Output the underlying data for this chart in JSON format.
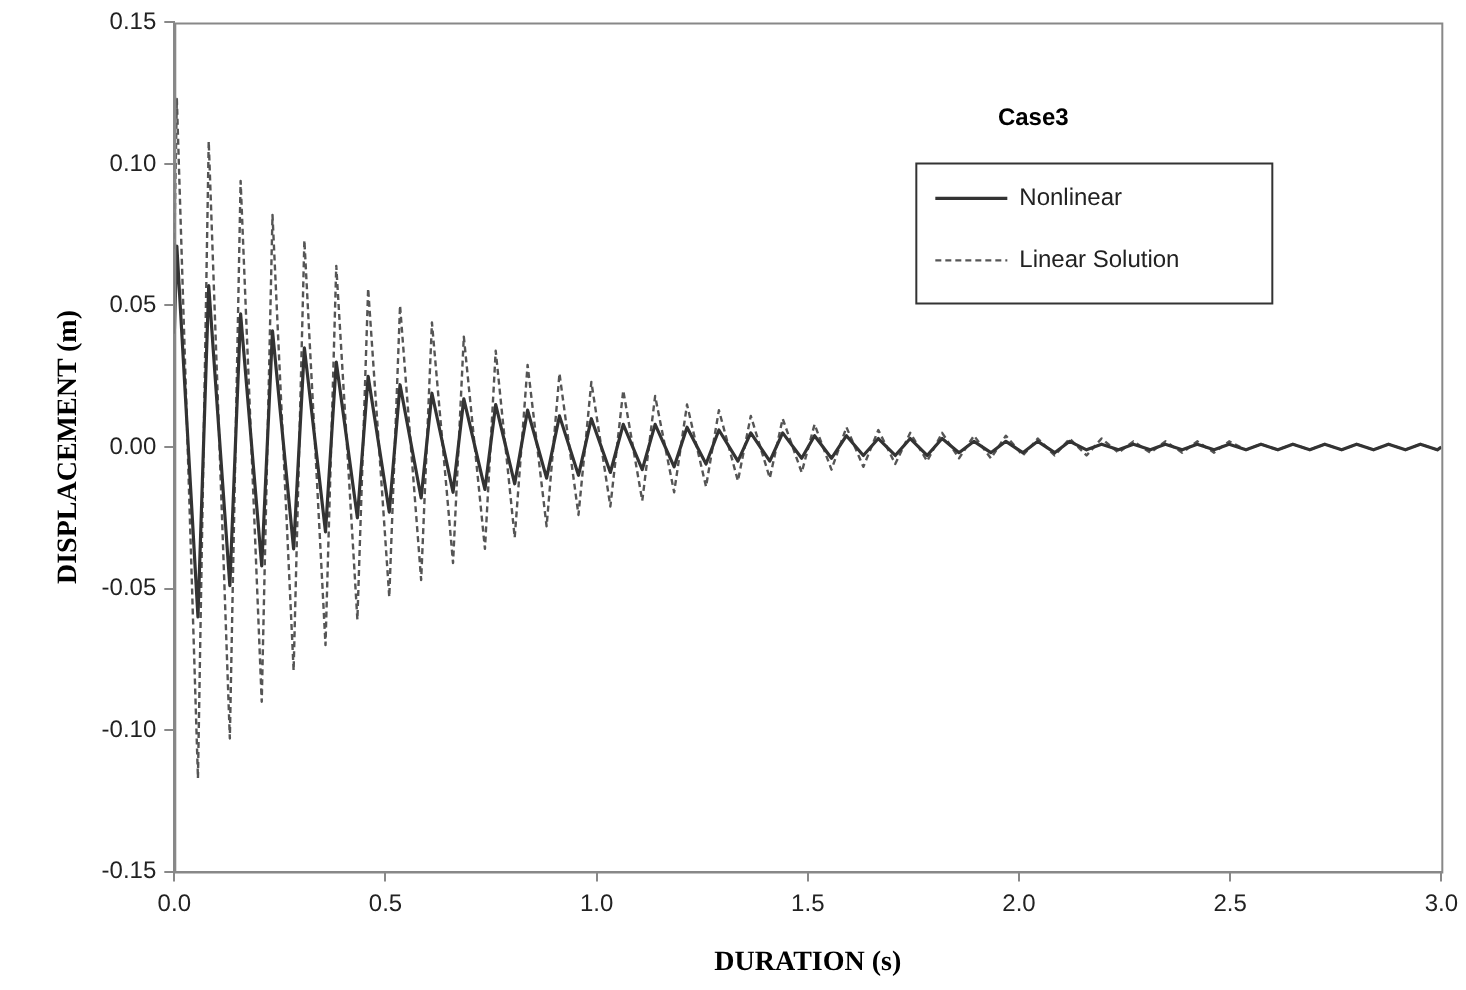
{
  "chart_data": {
    "type": "line",
    "xlabel": "DURATION (s)",
    "ylabel": "DISPLACEMENT (m)",
    "legend_title": "Case3",
    "legend": "top right",
    "grid": false,
    "marker": "none",
    "xlim": [
      0,
      3
    ],
    "xticks": [
      {
        "value": 0,
        "label": "0.0"
      },
      {
        "value": 0.5,
        "label": "0.5"
      },
      {
        "value": 1,
        "label": "1.0"
      },
      {
        "value": 1.5,
        "label": "1.5"
      },
      {
        "value": 2,
        "label": "2.0"
      },
      {
        "value": 2.5,
        "label": "2.5"
      },
      {
        "value": 3,
        "label": "3.0"
      }
    ],
    "ylim": [
      -0.15,
      0.15
    ],
    "yticks": [
      {
        "value": -0.15,
        "label": "-0.15"
      },
      {
        "value": -0.1,
        "label": "-0.10"
      },
      {
        "value": -0.05,
        "label": "-0.05"
      },
      {
        "value": 0,
        "label": "0.00"
      },
      {
        "value": 0.05,
        "label": "0.05"
      },
      {
        "value": 0.1,
        "label": "0.10"
      },
      {
        "value": 0.15,
        "label": "0.15"
      }
    ],
    "x": [
      0,
      0.006,
      0.056,
      0.0815,
      0.1315,
      0.157,
      0.207,
      0.2325,
      0.2825,
      0.308,
      0.358,
      0.3835,
      0.4335,
      0.459,
      0.509,
      0.5345,
      0.5845,
      0.61,
      0.66,
      0.6855,
      0.7355,
      0.761,
      0.806,
      0.8365,
      0.8815,
      0.912,
      0.957,
      0.9875,
      1.0325,
      1.063,
      1.108,
      1.1385,
      1.1835,
      1.214,
      1.259,
      1.2895,
      1.3345,
      1.365,
      1.41,
      1.4405,
      1.4855,
      1.516,
      1.556,
      1.5915,
      1.6315,
      1.667,
      1.707,
      1.7425,
      1.7825,
      1.818,
      1.858,
      1.8935,
      1.9335,
      1.969,
      2.009,
      2.0445,
      2.0845,
      2.12,
      2.16,
      2.1955,
      2.2355,
      2.271,
      2.311,
      2.3465,
      2.3865,
      2.422,
      2.462,
      2.4975,
      2.5375,
      2.573,
      2.613,
      2.6485,
      2.6885,
      2.724,
      2.764,
      2.7995,
      2.8395,
      2.875,
      2.915,
      2.9505,
      2.9905,
      3
    ],
    "series": [
      {
        "name": "Nonlinear",
        "color": "#333333",
        "line_style": "solid",
        "values": [
          0.04,
          0.071,
          -0.06,
          0.057,
          -0.049,
          0.047,
          -0.042,
          0.041,
          -0.036,
          0.035,
          -0.03,
          0.03,
          -0.025,
          0.025,
          -0.023,
          0.022,
          -0.018,
          0.019,
          -0.016,
          0.017,
          -0.015,
          0.015,
          -0.013,
          0.013,
          -0.011,
          0.011,
          -0.01,
          0.01,
          -0.009,
          0.008,
          -0.008,
          0.008,
          -0.007,
          0.007,
          -0.006,
          0.006,
          -0.005,
          0.005,
          -0.005,
          0.005,
          -0.004,
          0.004,
          -0.004,
          0.004,
          -0.003,
          0.003,
          -0.003,
          0.003,
          -0.003,
          0.003,
          -0.002,
          0.002,
          -0.002,
          0.002,
          -0.002,
          0.002,
          -0.002,
          0.002,
          -0.001,
          0.001,
          -0.001,
          0.001,
          -0.001,
          0.001,
          -0.001,
          0.001,
          -0.001,
          0.001,
          -0.001,
          0.001,
          -0.001,
          0.001,
          -0.001,
          0.001,
          -0.001,
          0.001,
          -0.001,
          0.001,
          -0.001,
          0.001,
          -0.001,
          0
        ]
      },
      {
        "name": "Linear Solution",
        "color": "#555555",
        "line_style": "dashed",
        "values": [
          0.07,
          0.123,
          -0.117,
          0.108,
          -0.103,
          0.094,
          -0.09,
          0.082,
          -0.079,
          0.073,
          -0.07,
          0.064,
          -0.061,
          0.056,
          -0.053,
          0.05,
          -0.047,
          0.044,
          -0.041,
          0.039,
          -0.036,
          0.034,
          -0.032,
          0.029,
          -0.028,
          0.026,
          -0.024,
          0.023,
          -0.021,
          0.02,
          -0.019,
          0.018,
          -0.016,
          0.015,
          -0.014,
          0.013,
          -0.012,
          0.011,
          -0.011,
          0.01,
          -0.009,
          0.008,
          -0.008,
          0.007,
          -0.007,
          0.006,
          -0.006,
          0.005,
          -0.005,
          0.005,
          -0.004,
          0.004,
          -0.004,
          0.004,
          -0.003,
          0.003,
          -0.003,
          0.003,
          -0.003,
          0.003,
          -0.002,
          0.002,
          -0.002,
          0.002,
          -0.002,
          0.002,
          -0.002,
          0.002,
          -0.001,
          0.001,
          -0.001,
          0.001,
          -0.001,
          0.001,
          -0.001,
          0.001,
          -0.001,
          0.001,
          -0.001,
          0.001,
          -0.001,
          0
        ]
      }
    ]
  }
}
